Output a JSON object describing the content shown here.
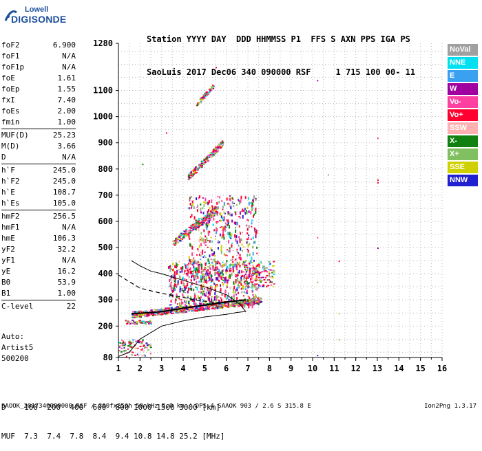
{
  "logo": {
    "line1": "Lowell",
    "line2": "DIGISONDE"
  },
  "header": {
    "labels": "Station YYYY DAY  DDD HHMMSS P1  FFS S AXN PPS IGA PS",
    "values": "SaoLuis 2017 Dec06 340 090000 RSF     1 715 100 00- 11"
  },
  "params": [
    [
      {
        "name": "foF2",
        "value": "6.900"
      },
      {
        "name": "foF1",
        "value": "N/A"
      },
      {
        "name": "foF1p",
        "value": "N/A"
      },
      {
        "name": "foE",
        "value": "1.61"
      },
      {
        "name": "foEp",
        "value": "1.55"
      },
      {
        "name": "fxI",
        "value": "7.40"
      },
      {
        "name": "foEs",
        "value": "2.00"
      },
      {
        "name": "fmin",
        "value": "1.00"
      }
    ],
    [
      {
        "name": "MUF(D)",
        "value": "25.23"
      },
      {
        "name": "M(D)",
        "value": "3.66"
      },
      {
        "name": "D",
        "value": "N/A"
      }
    ],
    [
      {
        "name": "h`F",
        "value": "245.0"
      },
      {
        "name": "h`F2",
        "value": "245.0"
      },
      {
        "name": "h`E",
        "value": "108.7"
      },
      {
        "name": "h`Es",
        "value": "105.0"
      }
    ],
    [
      {
        "name": "hmF2",
        "value": "256.5"
      },
      {
        "name": "hmF1",
        "value": "N/A"
      },
      {
        "name": "hmE",
        "value": "106.3"
      },
      {
        "name": "yF2",
        "value": "32.2"
      },
      {
        "name": "yF1",
        "value": "N/A"
      },
      {
        "name": "yE",
        "value": "16.2"
      },
      {
        "name": "B0",
        "value": "53.9"
      },
      {
        "name": "B1",
        "value": "1.00"
      }
    ],
    [
      {
        "name": "C-level",
        "value": "22"
      }
    ]
  ],
  "autoscale": {
    "line1": "Auto:",
    "line2": "Artist5",
    "line3": "500200"
  },
  "legend": [
    {
      "label": "NoVal",
      "color": "#a0a0a0"
    },
    {
      "label": "NNE",
      "color": "#00e0f0"
    },
    {
      "label": "E",
      "color": "#3aa0f0"
    },
    {
      "label": "W",
      "color": "#a000a0"
    },
    {
      "label": "Vo-",
      "color": "#ff40a0"
    },
    {
      "label": "Vo+",
      "color": "#ff0030"
    },
    {
      "label": "SSW",
      "color": "#ffb0b0"
    },
    {
      "label": "X-",
      "color": "#108010"
    },
    {
      "label": "X+",
      "color": "#80c060"
    },
    {
      "label": "SSE",
      "color": "#d0d000"
    },
    {
      "label": "NNW",
      "color": "#2020d0"
    }
  ],
  "footer": {
    "line1": "D    100  200  400  600  800 1000 1500 3000 [km]",
    "line2": "MUF  7.3  7.4  7.8  8.4  9.4 10.8 14.8 25.2 [MHz]"
  },
  "bottom_text": "SAOOK_2017340090000.RSF / 300fx256h 50 kHz 5.0 km / DPS-4 SAAOK 903 / 2.6 S 315.8 E",
  "version": "Ion2Png 1.3.17",
  "chart_data": {
    "type": "scatter",
    "x_ticks": [
      1,
      2,
      3,
      4,
      5,
      6,
      7,
      8,
      9,
      10,
      11,
      12,
      13,
      14,
      15,
      16
    ],
    "y_ticks": [
      80,
      200,
      300,
      400,
      500,
      600,
      700,
      800,
      900,
      1000,
      1100,
      1280
    ],
    "xlim": [
      1,
      16
    ],
    "ylim": [
      80,
      1280
    ],
    "grid": true,
    "clusters": [
      {
        "x": [
          1.6,
          7.6
        ],
        "y": [
          245,
          300
        ],
        "n": 700,
        "slope": 0.1,
        "spread": 12
      },
      {
        "x": [
          3.3,
          7.5
        ],
        "y": [
          280,
          450
        ],
        "n": 600,
        "vertical": true
      },
      {
        "x": [
          4.2,
          7.4
        ],
        "y": [
          390,
          700
        ],
        "n": 450,
        "vertical": true
      },
      {
        "x": [
          3.5,
          5.6
        ],
        "y": [
          520,
          650
        ],
        "n": 260,
        "slope": 0.5,
        "spread": 14
      },
      {
        "x": [
          4.2,
          5.8
        ],
        "y": [
          770,
          900
        ],
        "n": 200,
        "slope": 0.6,
        "spread": 12
      },
      {
        "x": [
          4.6,
          5.4
        ],
        "y": [
          1050,
          1120
        ],
        "n": 80,
        "slope": 0.6,
        "spread": 8
      },
      {
        "x": [
          1.0,
          2.5
        ],
        "y": [
          85,
          150
        ],
        "n": 80
      },
      {
        "x": [
          1.3,
          2.5
        ],
        "y": [
          210,
          225
        ],
        "n": 60
      },
      {
        "x": [
          6.8,
          8.2
        ],
        "y": [
          350,
          450
        ],
        "n": 120
      }
    ],
    "isolated_points": [
      {
        "x": 10.2,
        "y": 1140
      },
      {
        "x": 10.7,
        "y": 780
      },
      {
        "x": 13.0,
        "y": 920
      },
      {
        "x": 13.0,
        "y": 760
      },
      {
        "x": 13.0,
        "y": 750
      },
      {
        "x": 13.0,
        "y": 500
      },
      {
        "x": 11.2,
        "y": 450
      },
      {
        "x": 11.2,
        "y": 250
      },
      {
        "x": 11.2,
        "y": 150
      },
      {
        "x": 10.2,
        "y": 540
      },
      {
        "x": 10.2,
        "y": 370
      },
      {
        "x": 10.2,
        "y": 90
      },
      {
        "x": 5.5,
        "y": 1190
      },
      {
        "x": 2.1,
        "y": 820
      },
      {
        "x": 3.2,
        "y": 940
      }
    ],
    "profile": {
      "x": [
        1.0,
        1.5,
        2.0,
        3.0,
        4.0,
        5.0,
        6.0,
        6.5,
        6.9,
        6.6,
        6.0,
        5.0,
        4.0,
        3.0,
        2.5,
        2.0,
        1.6
      ],
      "y": [
        84,
        100,
        150,
        200,
        220,
        235,
        245,
        252,
        256,
        285,
        320,
        350,
        375,
        400,
        410,
        430,
        450
      ]
    },
    "dashed_curve": {
      "x": [
        1.0,
        1.5,
        2.0,
        3.0,
        4.0,
        4.5,
        5.0,
        5.5,
        6.0
      ],
      "y": [
        395,
        370,
        345,
        325,
        310,
        300,
        295,
        290,
        288
      ]
    },
    "trace": {
      "x": [
        1.6,
        2.0,
        3.0,
        4.0,
        5.0,
        6.0,
        6.9
      ],
      "y": [
        247,
        249,
        255,
        268,
        280,
        292,
        300
      ]
    }
  }
}
